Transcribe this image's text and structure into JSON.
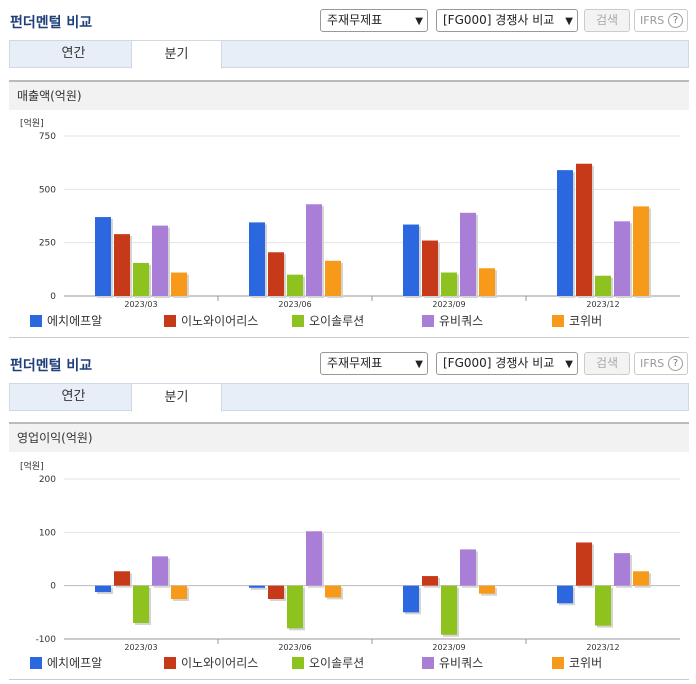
{
  "sections": [
    {
      "title": "펀더멘털 비교",
      "select1": "주재무제표",
      "select2": "[FG000] 경쟁사 비교",
      "search_label": "검색",
      "ifrs_label": "IFRS",
      "tabs": [
        {
          "label": "연간"
        },
        {
          "label": "분기"
        }
      ],
      "active_tab": "분기",
      "subheading": "매출액(억원)"
    },
    {
      "title": "펀더멘털 비교",
      "select1": "주재무제표",
      "select2": "[FG000] 경쟁사 비교",
      "search_label": "검색",
      "ifrs_label": "IFRS",
      "tabs": [
        {
          "label": "연간"
        },
        {
          "label": "분기"
        }
      ],
      "active_tab": "분기",
      "subheading": "영업이익(억원)"
    }
  ],
  "colors": {
    "에치에프알": "#2b67de",
    "이노와이어리스": "#c63a1a",
    "오이솔루션": "#8ec21f",
    "유비쿼스": "#a97ed6",
    "코위버": "#f79a1a"
  },
  "chart_data": [
    {
      "type": "bar",
      "unit_label": "[억원]",
      "categories": [
        "2023/03",
        "2023/06",
        "2023/09",
        "2023/12"
      ],
      "ylim": [
        0,
        750
      ],
      "yticks": [
        0,
        250,
        500,
        750
      ],
      "grid": true,
      "legend_position": "bottom",
      "series": [
        {
          "name": "에치에프알",
          "values": [
            370,
            345,
            335,
            590
          ]
        },
        {
          "name": "이노와이어리스",
          "values": [
            290,
            205,
            260,
            620
          ]
        },
        {
          "name": "오이솔루션",
          "values": [
            155,
            100,
            110,
            95
          ]
        },
        {
          "name": "유비쿼스",
          "values": [
            330,
            430,
            390,
            350
          ]
        },
        {
          "name": "코위버",
          "values": [
            110,
            165,
            130,
            420
          ]
        }
      ]
    },
    {
      "type": "bar",
      "unit_label": "[억원]",
      "categories": [
        "2023/03",
        "2023/06",
        "2023/09",
        "2023/12"
      ],
      "ylim": [
        -100,
        200
      ],
      "yticks": [
        -100,
        0,
        100,
        200
      ],
      "grid": true,
      "legend_position": "bottom",
      "series": [
        {
          "name": "에치에프알",
          "values": [
            -12,
            -4,
            -50,
            -33
          ]
        },
        {
          "name": "이노와이어리스",
          "values": [
            27,
            -25,
            18,
            81
          ]
        },
        {
          "name": "오이솔루션",
          "values": [
            -70,
            -80,
            -92,
            -75
          ]
        },
        {
          "name": "유비쿼스",
          "values": [
            55,
            102,
            68,
            61
          ]
        },
        {
          "name": "코위버",
          "values": [
            -25,
            -22,
            -15,
            27
          ]
        }
      ]
    }
  ]
}
